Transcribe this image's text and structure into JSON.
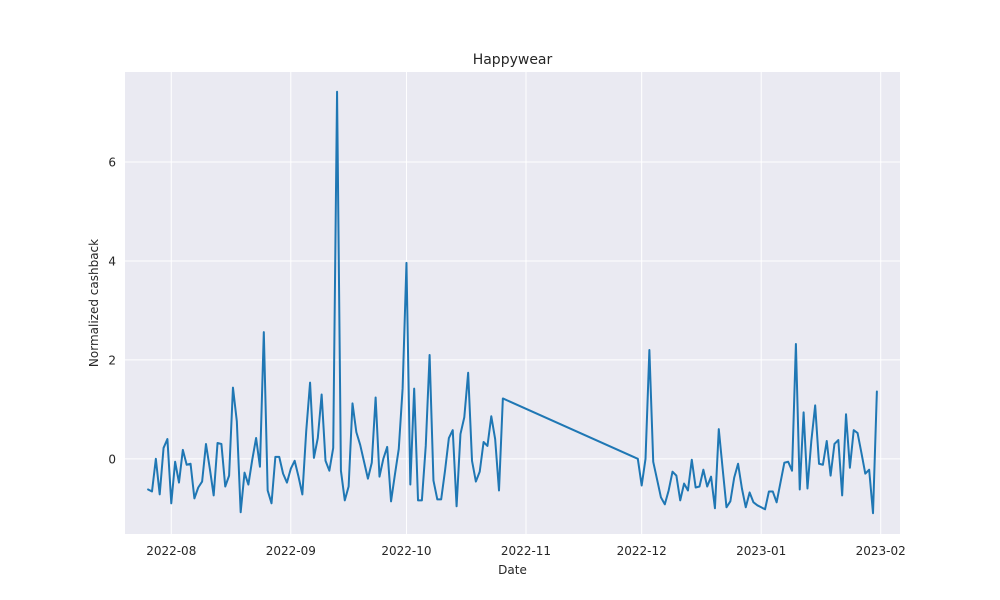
{
  "chart_data": {
    "type": "line",
    "title": "Happywear",
    "xlabel": "Date",
    "ylabel": "Normalized cashback",
    "x_axis": {
      "scale": "date",
      "range": [
        "2022-07-20",
        "2023-02-06"
      ],
      "ticks": [
        "2022-08-01",
        "2022-09-01",
        "2022-10-01",
        "2022-11-01",
        "2022-12-01",
        "2023-01-01",
        "2023-02-01"
      ],
      "tick_labels": [
        "2022-08",
        "2022-09",
        "2022-10",
        "2022-11",
        "2022-12",
        "2023-01",
        "2023-02"
      ]
    },
    "y_axis": {
      "range": [
        -1.52,
        7.82
      ],
      "ticks": [
        0,
        2,
        4,
        6
      ],
      "tick_labels": [
        "0",
        "2",
        "4",
        "6"
      ]
    },
    "grid": true,
    "legend": "none",
    "colors": {
      "line": "#1f77b4",
      "plot_background": "#eaeaf2",
      "grid": "#ffffff"
    },
    "series": [
      {
        "x": [
          "2022-07-26",
          "2022-07-27",
          "2022-07-28",
          "2022-07-29",
          "2022-07-30",
          "2022-07-31",
          "2022-08-01",
          "2022-08-02",
          "2022-08-03",
          "2022-08-04",
          "2022-08-05",
          "2022-08-06",
          "2022-08-07",
          "2022-08-08",
          "2022-08-09",
          "2022-08-10",
          "2022-08-11",
          "2022-08-12",
          "2022-08-13",
          "2022-08-14",
          "2022-08-15",
          "2022-08-16",
          "2022-08-17",
          "2022-08-18",
          "2022-08-19",
          "2022-08-20",
          "2022-08-21",
          "2022-08-22",
          "2022-08-23",
          "2022-08-24",
          "2022-08-25",
          "2022-08-26",
          "2022-08-27",
          "2022-08-28",
          "2022-08-29",
          "2022-08-30",
          "2022-08-31",
          "2022-09-01",
          "2022-09-02",
          "2022-09-03",
          "2022-09-04",
          "2022-09-05",
          "2022-09-06",
          "2022-09-07",
          "2022-09-08",
          "2022-09-09",
          "2022-09-10",
          "2022-09-11",
          "2022-09-12",
          "2022-09-13",
          "2022-09-14",
          "2022-09-15",
          "2022-09-16",
          "2022-09-17",
          "2022-09-18",
          "2022-09-19",
          "2022-09-20",
          "2022-09-21",
          "2022-09-22",
          "2022-09-23",
          "2022-09-24",
          "2022-09-25",
          "2022-09-26",
          "2022-09-27",
          "2022-09-28",
          "2022-09-29",
          "2022-09-30",
          "2022-10-01",
          "2022-10-02",
          "2022-10-03",
          "2022-10-04",
          "2022-10-05",
          "2022-10-06",
          "2022-10-07",
          "2022-10-08",
          "2022-10-09",
          "2022-10-10",
          "2022-10-11",
          "2022-10-12",
          "2022-10-13",
          "2022-10-14",
          "2022-10-15",
          "2022-10-16",
          "2022-10-17",
          "2022-10-18",
          "2022-10-19",
          "2022-10-20",
          "2022-10-21",
          "2022-10-22",
          "2022-10-23",
          "2022-10-24",
          "2022-10-25",
          "2022-10-26",
          "2022-11-30",
          "2022-12-01",
          "2022-12-02",
          "2022-12-03",
          "2022-12-04",
          "2022-12-05",
          "2022-12-06",
          "2022-12-07",
          "2022-12-08",
          "2022-12-09",
          "2022-12-10",
          "2022-12-11",
          "2022-12-12",
          "2022-12-13",
          "2022-12-14",
          "2022-12-15",
          "2022-12-16",
          "2022-12-17",
          "2022-12-18",
          "2022-12-19",
          "2022-12-20",
          "2022-12-21",
          "2022-12-22",
          "2022-12-23",
          "2022-12-24",
          "2022-12-25",
          "2022-12-26",
          "2022-12-27",
          "2022-12-28",
          "2022-12-29",
          "2022-12-30",
          "2022-12-31",
          "2023-01-01",
          "2023-01-02",
          "2023-01-03",
          "2023-01-04",
          "2023-01-05",
          "2023-01-06",
          "2023-01-07",
          "2023-01-08",
          "2023-01-09",
          "2023-01-10",
          "2023-01-11",
          "2023-01-12",
          "2023-01-13",
          "2023-01-14",
          "2023-01-15",
          "2023-01-16",
          "2023-01-17",
          "2023-01-18",
          "2023-01-19",
          "2023-01-20",
          "2023-01-21",
          "2023-01-22",
          "2023-01-23",
          "2023-01-24",
          "2023-01-25",
          "2023-01-26",
          "2023-01-27",
          "2023-01-28",
          "2023-01-29",
          "2023-01-30",
          "2023-01-31"
        ],
        "values": [
          -0.62,
          -0.66,
          0.0,
          -0.72,
          0.22,
          0.4,
          -0.9,
          -0.06,
          -0.48,
          0.18,
          -0.12,
          -0.1,
          -0.8,
          -0.58,
          -0.46,
          0.3,
          -0.2,
          -0.74,
          0.32,
          0.3,
          -0.56,
          -0.34,
          1.44,
          0.76,
          -1.08,
          -0.28,
          -0.52,
          -0.02,
          0.42,
          -0.16,
          2.56,
          -0.64,
          -0.9,
          0.04,
          0.04,
          -0.3,
          -0.48,
          -0.2,
          -0.04,
          -0.36,
          -0.72,
          0.56,
          1.54,
          0.02,
          0.42,
          1.3,
          -0.04,
          -0.24,
          0.22,
          7.42,
          -0.24,
          -0.84,
          -0.56,
          1.12,
          0.54,
          0.28,
          -0.06,
          -0.4,
          -0.08,
          1.24,
          -0.36,
          0.0,
          0.24,
          -0.86,
          -0.32,
          0.2,
          1.42,
          3.96,
          -0.52,
          1.42,
          -0.84,
          -0.84,
          0.26,
          2.1,
          -0.44,
          -0.82,
          -0.82,
          -0.24,
          0.42,
          0.58,
          -0.96,
          0.5,
          0.84,
          1.74,
          -0.04,
          -0.46,
          -0.26,
          0.34,
          0.26,
          0.86,
          0.4,
          -0.64,
          1.22,
          0.0,
          -0.54,
          0.0,
          2.2,
          -0.06,
          -0.42,
          -0.78,
          -0.92,
          -0.64,
          -0.26,
          -0.34,
          -0.84,
          -0.5,
          -0.64,
          -0.02,
          -0.58,
          -0.56,
          -0.22,
          -0.56,
          -0.36,
          -1.0,
          0.6,
          -0.2,
          -0.98,
          -0.86,
          -0.38,
          -0.1,
          -0.6,
          -0.98,
          -0.68,
          -0.88,
          -0.94,
          -0.98,
          -1.02,
          -0.66,
          -0.66,
          -0.88,
          -0.48,
          -0.08,
          -0.06,
          -0.24,
          2.32,
          -0.62,
          0.94,
          -0.6,
          0.36,
          1.08,
          -0.1,
          -0.12,
          0.36,
          -0.34,
          0.3,
          0.38,
          -0.74,
          0.9,
          -0.18,
          0.58,
          0.52,
          0.12,
          -0.3,
          -0.22,
          -1.1,
          1.36
        ]
      }
    ]
  }
}
